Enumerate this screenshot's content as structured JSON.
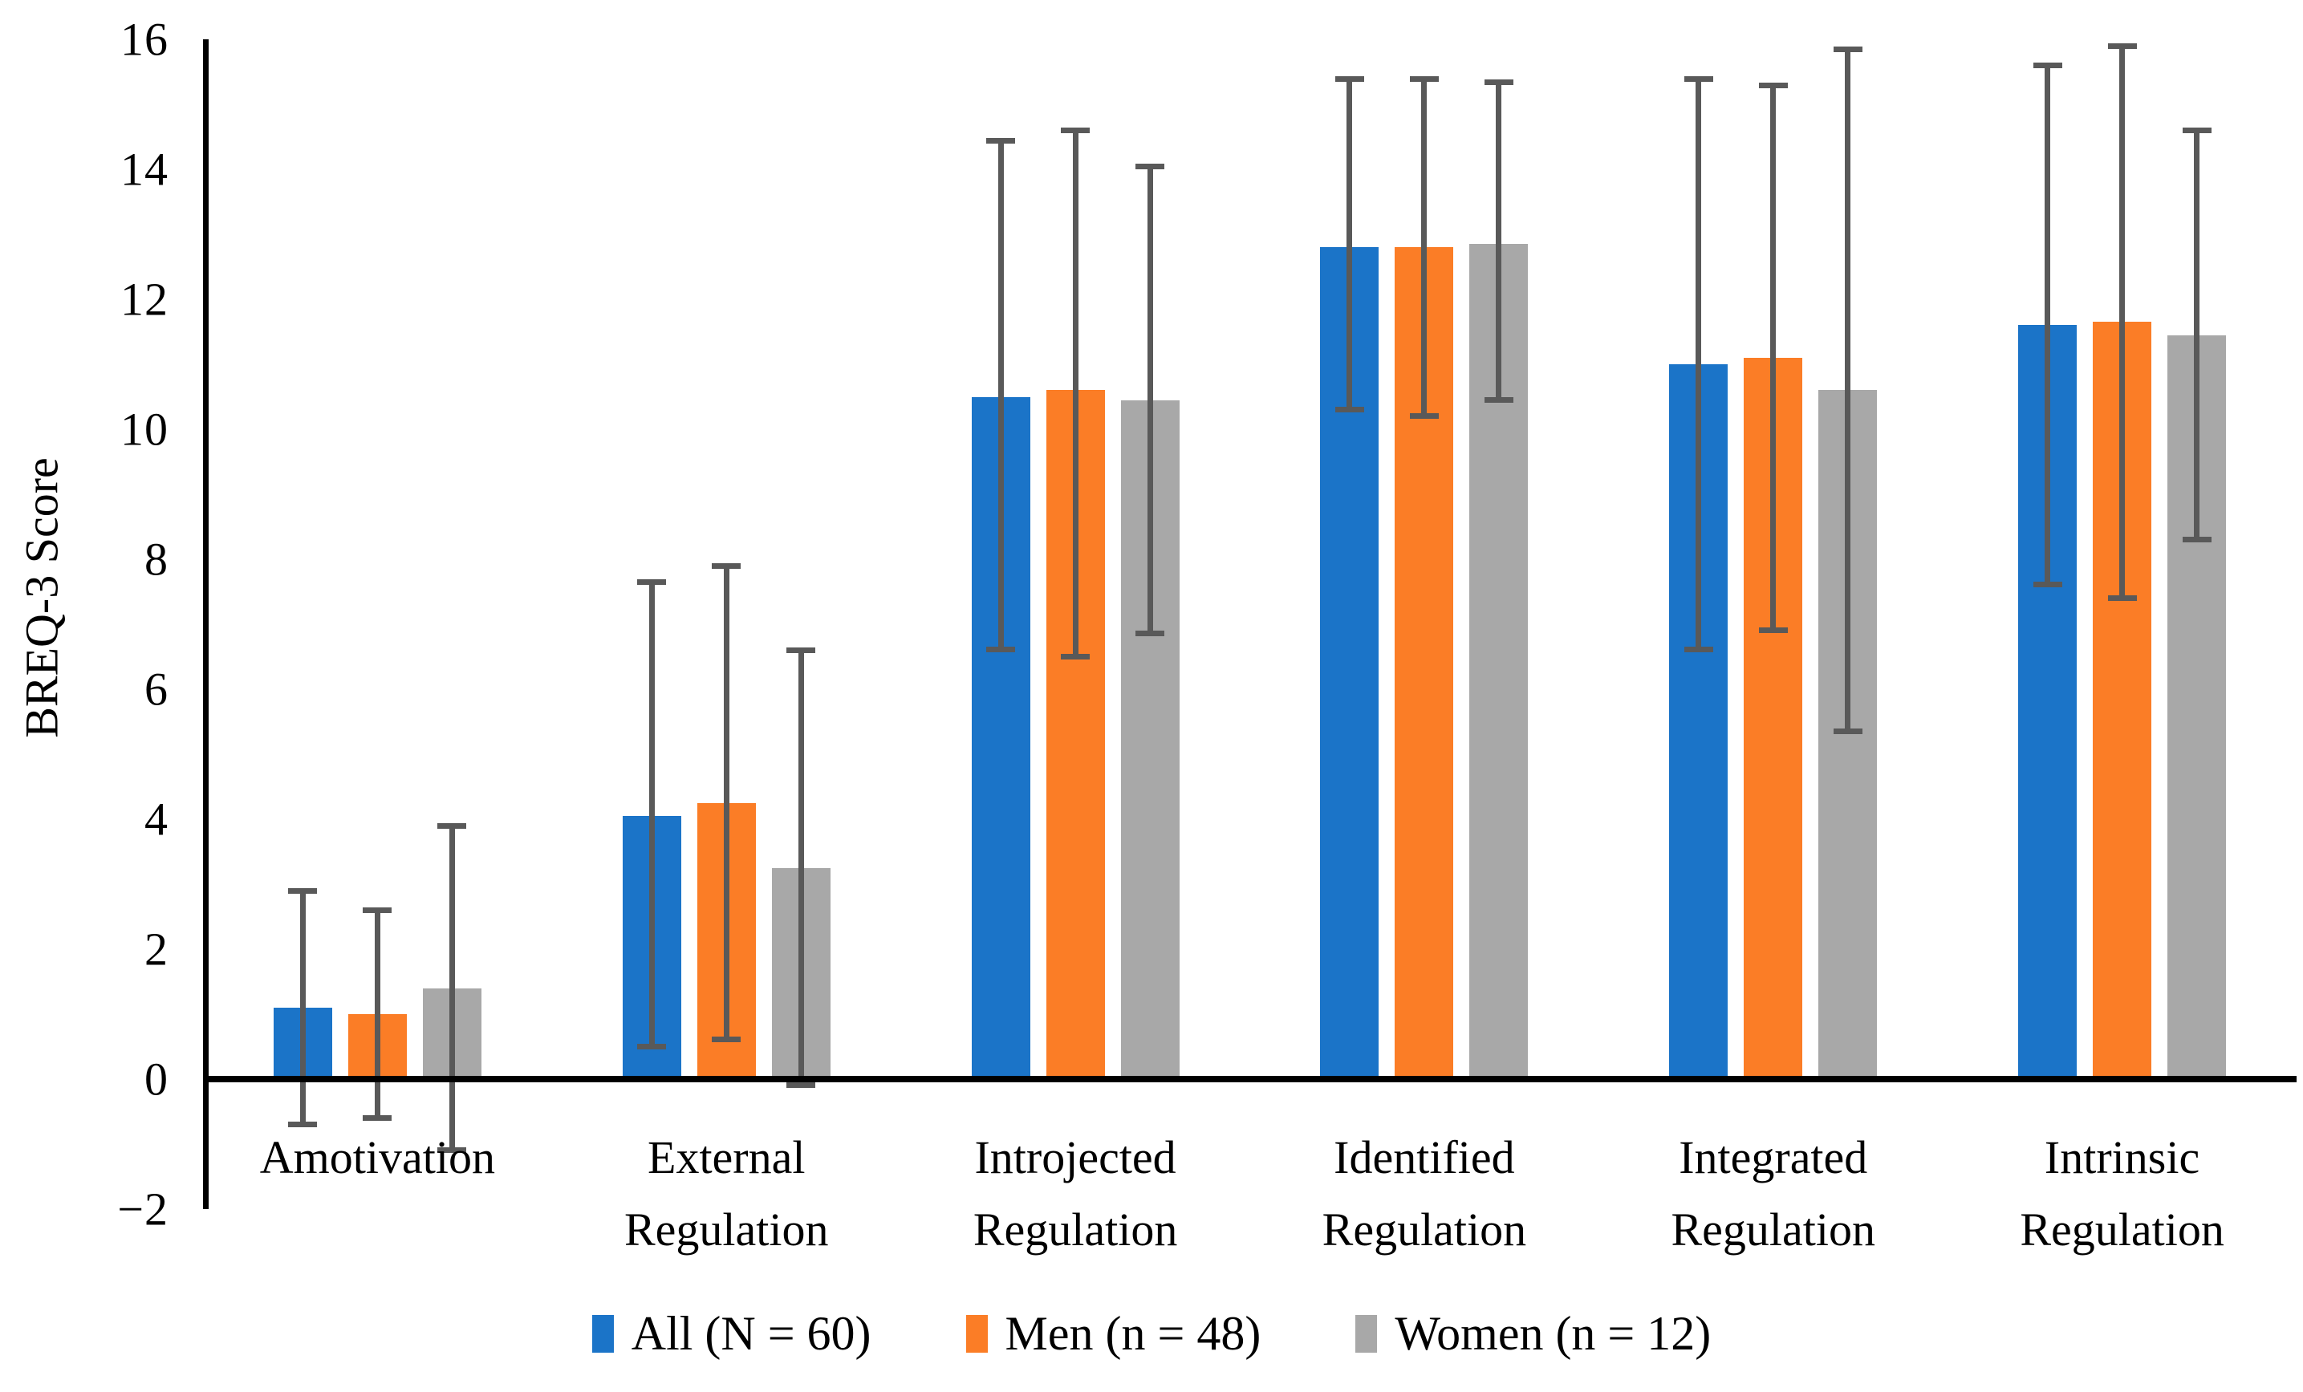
{
  "chart_data": {
    "type": "bar",
    "title": "",
    "ylabel": "BREQ-3 Score",
    "xlabel": "",
    "ylim": [
      -2,
      16
    ],
    "ytick_step": 2,
    "yticks": [
      16,
      14,
      12,
      10,
      8,
      6,
      4,
      2,
      0,
      -2
    ],
    "grid": false,
    "legend_position": "bottom",
    "error_bars": "plus-minus-sd",
    "categories": [
      "Amotivation",
      "External Regulation",
      "Introjected Regulation",
      "Identified Regulation",
      "Integrated Regulation",
      "Intrinsic Regulation"
    ],
    "category_label_lines": [
      [
        "Amotivation"
      ],
      [
        "External",
        "Regulation"
      ],
      [
        "Introjected",
        "Regulation"
      ],
      [
        "Identified",
        "Regulation"
      ],
      [
        "Integrated",
        "Regulation"
      ],
      [
        "Intrinsic",
        "Regulation"
      ]
    ],
    "series": [
      {
        "name": "All (N = 60)",
        "key": "all",
        "color": "#1B74C8",
        "values": [
          1.1,
          4.05,
          10.5,
          12.8,
          11.0,
          11.6
        ],
        "error_low": [
          -0.7,
          0.5,
          6.6,
          10.3,
          6.6,
          7.6
        ],
        "error_high": [
          2.9,
          7.65,
          14.45,
          15.4,
          15.4,
          15.6
        ]
      },
      {
        "name": "Men (n = 48)",
        "key": "men",
        "color": "#FB7D26",
        "values": [
          1.0,
          4.25,
          10.6,
          12.8,
          11.1,
          11.65
        ],
        "error_low": [
          -0.6,
          0.6,
          6.5,
          10.2,
          6.9,
          7.4
        ],
        "error_high": [
          2.6,
          7.9,
          14.6,
          15.4,
          15.3,
          15.9
        ]
      },
      {
        "name": "Women (n = 12)",
        "key": "women",
        "color": "#A8A8A8",
        "values": [
          1.4,
          3.25,
          10.45,
          12.85,
          10.6,
          11.45
        ],
        "error_low": [
          -1.1,
          -0.1,
          6.85,
          10.45,
          5.35,
          8.3
        ],
        "error_high": [
          3.9,
          6.6,
          14.05,
          15.35,
          15.85,
          14.6
        ]
      }
    ],
    "error_bar_color": "#595959",
    "axis_color": "#000000",
    "background_color": "#FFFFFF"
  }
}
